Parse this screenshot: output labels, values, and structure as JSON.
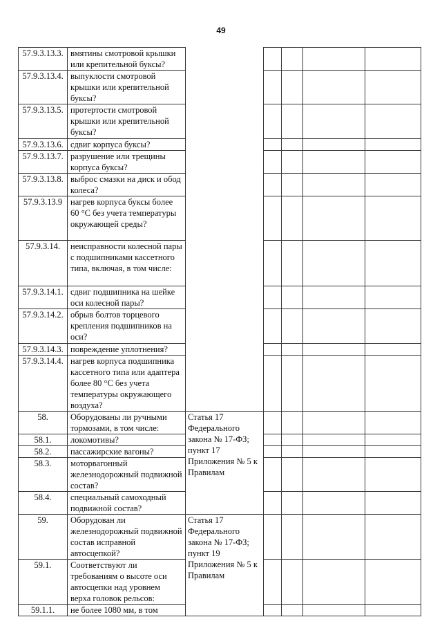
{
  "page_number": "49",
  "rows": [
    {
      "num": "57.9.3.13.3.",
      "text": "вмятины смотровой крышки или крепительной буксы?"
    },
    {
      "num": "57.9.3.13.4.",
      "text": "выпуклости смотровой крышки или крепительной буксы?"
    },
    {
      "num": "57.9.3.13.5.",
      "text": "протертости смотровой крышки или крепительной буксы?"
    },
    {
      "num": "57.9.3.13.6.",
      "text": "сдвиг корпуса буксы?"
    },
    {
      "num": "57.9.3.13.7.",
      "text": "разрушение или трещины корпуса буксы?"
    },
    {
      "num": "57.9.3.13.8.",
      "text": "выброс смазки на диск и обод колеса?"
    },
    {
      "num": "57.9.3.13.9",
      "text": "нагрев корпуса буксы более 60 °С без учета температуры окружающей среды?"
    },
    {
      "num": "57.9.3.14.",
      "text": "неисправности колесной пары с подшипниками кассетного типа, включая, в том числе:"
    },
    {
      "num": "57.9.3.14.1.",
      "text": "сдвиг подшипника на шейке оси колесной пары?"
    },
    {
      "num": "57.9.3.14.2.",
      "text": "обрыв болтов торцевого крепления подшипников на оси?"
    },
    {
      "num": "57.9.3.14.3.",
      "text": "повреждение уплотнения?"
    },
    {
      "num": "57.9.3.14.4.",
      "text": "нагрев корпуса подшипника кассетного типа или адаптера более 80 °С без учета температуры окружающего воздуха?"
    },
    {
      "num": "58.",
      "text": "Оборудованы ли ручными тормозами, в том числе:"
    },
    {
      "num": "58.1.",
      "text": "локомотивы?"
    },
    {
      "num": "58.2.",
      "text": "пассажирские вагоны?"
    },
    {
      "num": "58.3.",
      "text": "моторвагонный железнодорожный подвижной состав?"
    },
    {
      "num": "58.4.",
      "text": "специальный самоходный подвижной состав?"
    },
    {
      "num": "59.",
      "text": "Оборудован ли железнодорожный подвижной состав исправной автосцепкой?"
    },
    {
      "num": "59.1.",
      "text": "Соответствуют ли требованиям о высоте оси автосцепки над уровнем верха головок рельсов:"
    },
    {
      "num": "59.1.1.",
      "text": "не более 1080 мм, в том"
    }
  ],
  "law_refs": [
    "Статья 17 Федерального закона № 17-ФЗ; пункт 17 Приложения № 5 к Правилам",
    "Статья 17 Федерального закона № 17-ФЗ; пункт 19 Приложения № 5 к Правилам"
  ]
}
